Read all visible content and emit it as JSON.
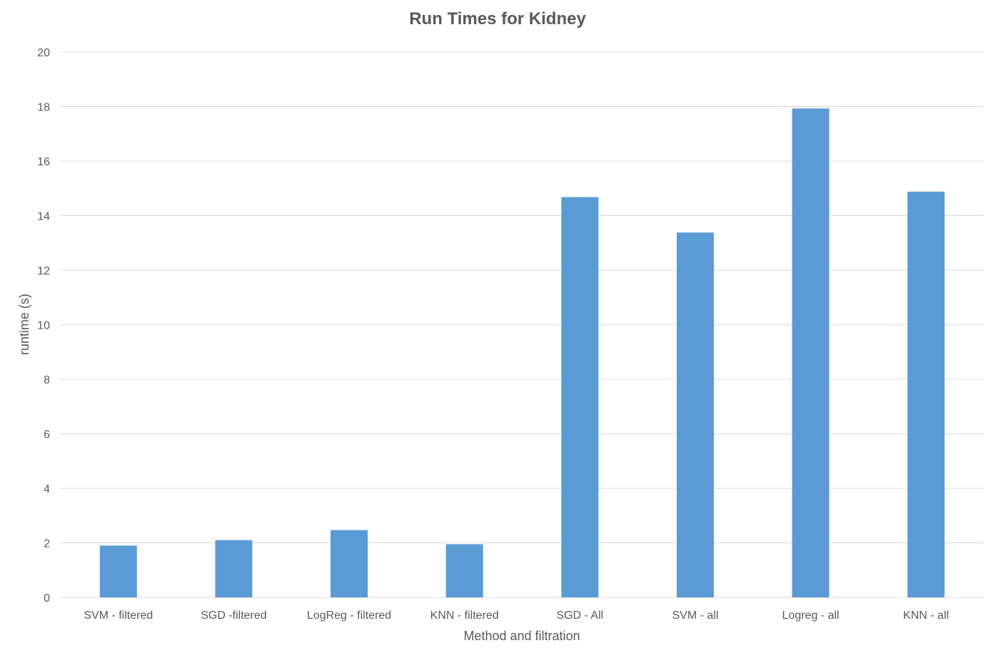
{
  "chart_data": {
    "type": "bar",
    "title": "Run Times for Kidney",
    "xlabel": "Method and filtration",
    "ylabel": "runtime (s)",
    "ylim": [
      0,
      20
    ],
    "yticks": [
      "0",
      "2",
      "4",
      "6",
      "8",
      "10",
      "12",
      "14",
      "16",
      "18",
      "20"
    ],
    "grid": true,
    "legend": "none",
    "bar_color": "#5b9bd5",
    "categories": [
      "SVM - filtered",
      "SGD -filtered",
      "LogReg - filtered",
      "KNN - filtered",
      "SGD - All",
      "SVM - all",
      "Logreg - all",
      "KNN - all"
    ],
    "values": [
      1.9,
      2.1,
      2.47,
      1.95,
      14.68,
      13.38,
      17.93,
      14.88
    ]
  }
}
